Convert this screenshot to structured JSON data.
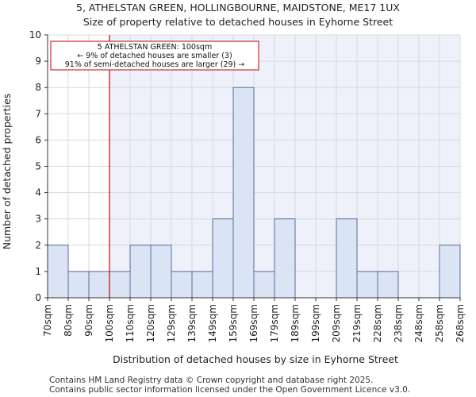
{
  "chart_data": {
    "type": "histogram",
    "title": "5, ATHELSTAN GREEN, HOLLINGBOURNE, MAIDSTONE, ME17 1UX",
    "subtitle": "Size of property relative to detached houses in Eyhorne Street",
    "xlabel": "Distribution of detached houses by size in Eyhorne Street",
    "ylabel": "Number of detached properties",
    "categories": [
      "70sqm",
      "80sqm",
      "90sqm",
      "100sqm",
      "110sqm",
      "120sqm",
      "129sqm",
      "139sqm",
      "149sqm",
      "159sqm",
      "169sqm",
      "179sqm",
      "189sqm",
      "199sqm",
      "209sqm",
      "219sqm",
      "228sqm",
      "238sqm",
      "248sqm",
      "258sqm",
      "268sqm"
    ],
    "values": [
      2,
      1,
      1,
      1,
      2,
      2,
      1,
      1,
      3,
      8,
      1,
      3,
      0,
      0,
      3,
      1,
      1,
      0,
      0,
      2
    ],
    "ylim": [
      0,
      10
    ],
    "yticks": [
      0,
      1,
      2,
      3,
      4,
      5,
      6,
      7,
      8,
      9,
      10
    ],
    "grid": true,
    "colors": {
      "bar_fill": "#dbe4f4",
      "bar_edge": "#5a6b9a",
      "highlight_bg": "#eef1fa",
      "marker_line": "#cc0000",
      "annotation_border": "#cc0000"
    },
    "marker": {
      "category_index": 3,
      "label": "100sqm"
    },
    "annotation": {
      "line1": "5 ATHELSTAN GREEN: 100sqm",
      "line2": "← 9% of detached houses are smaller (3)",
      "line3": "91% of semi-detached houses are larger (29) →"
    }
  },
  "footer": {
    "line1": "Contains HM Land Registry data © Crown copyright and database right 2025.",
    "line2": "Contains public sector information licensed under the Open Government Licence v3.0."
  }
}
